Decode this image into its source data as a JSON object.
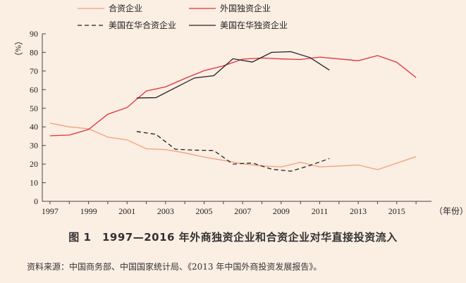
{
  "chart_data": {
    "type": "line",
    "x": [
      1997,
      1998,
      1999,
      2000,
      2001,
      2002,
      2003,
      2004,
      2005,
      2006,
      2007,
      2008,
      2009,
      2010,
      2011,
      2012,
      2013,
      2014,
      2015,
      2016
    ],
    "xticks": [
      1997,
      1999,
      2001,
      2003,
      2005,
      2007,
      2009,
      2011,
      2013,
      2015
    ],
    "xlabel": "（年份）",
    "ylabel": "（%）",
    "ylim": [
      0,
      90
    ],
    "yticks": [
      0,
      10,
      20,
      30,
      40,
      50,
      60,
      70,
      80,
      90
    ],
    "legend_position": "top",
    "series": [
      {
        "name": "合资企业",
        "color": "#f0a07c",
        "dash": "solid",
        "x": [
          1997,
          1998,
          1999,
          2000,
          2001,
          2002,
          2003,
          2004,
          2005,
          2006,
          2007,
          2008,
          2009,
          2010,
          2011,
          2012,
          2013,
          2014,
          2015,
          2016
        ],
        "values": [
          42,
          40,
          39,
          34.5,
          33,
          28.2,
          27.8,
          26,
          23.8,
          22,
          20.2,
          19,
          18.5,
          21,
          18.5,
          19,
          19.5,
          17,
          20.5,
          24
        ]
      },
      {
        "name": "外国独资企业",
        "color": "#e0323a",
        "dash": "solid",
        "x": [
          1997,
          1998,
          1999,
          2000,
          2001,
          2002,
          2003,
          2004,
          2005,
          2006,
          2007,
          2008,
          2009,
          2010,
          2011,
          2012,
          2013,
          2014,
          2015,
          2016
        ],
        "values": [
          35.2,
          35.6,
          38.6,
          46.8,
          50.4,
          59.3,
          61.5,
          66,
          70.2,
          72.8,
          76.4,
          77,
          76.5,
          76.2,
          77.5,
          76.5,
          75.5,
          78.3,
          74.7,
          66.5
        ]
      },
      {
        "name": "美国在华合资企业",
        "color": "#222222",
        "dash": "dashed",
        "x": [
          2001.5,
          2002.5,
          2003.5,
          2004.5,
          2005.5,
          2006.5,
          2007.5,
          2008.5,
          2009.5,
          2010.5,
          2011.5
        ],
        "values": [
          37.5,
          36,
          28,
          27.5,
          27.3,
          20,
          20.6,
          17.3,
          16.2,
          19.3,
          23
        ]
      },
      {
        "name": "美国在华独资企业",
        "color": "#222222",
        "dash": "solid",
        "x": [
          2001.5,
          2002.5,
          2003.5,
          2004.5,
          2005.5,
          2006.5,
          2007.5,
          2008.5,
          2009.5,
          2010.5,
          2011.5
        ],
        "values": [
          55.5,
          55.7,
          61,
          66.3,
          67.5,
          76.6,
          74.8,
          80,
          80.4,
          77.2,
          70.5
        ]
      }
    ]
  },
  "caption": "图 1　1997—2016 年外商独资企业和合资企业对华直接投资流入",
  "source": "资料来源：中国商务部、中国国家统计局、《2013 年中国外商投资发展报告》。"
}
